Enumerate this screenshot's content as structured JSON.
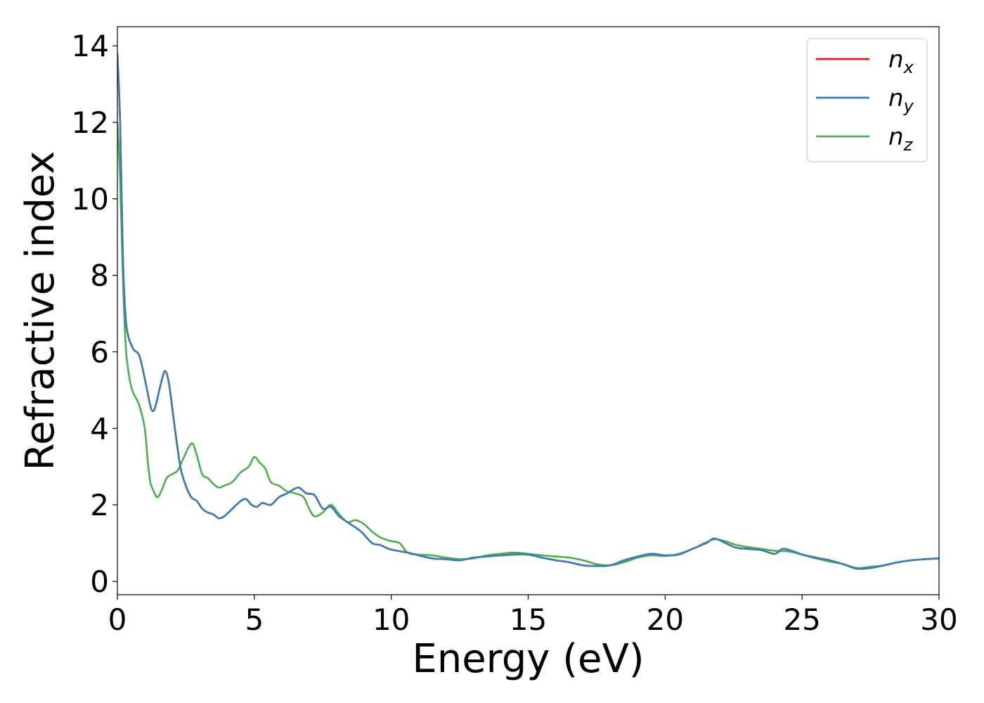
{
  "chart_data": {
    "type": "line",
    "title": "",
    "xlabel": "Energy (eV)",
    "ylabel": "Refractive index",
    "xlim": [
      0,
      30
    ],
    "ylim": [
      -0.35,
      14.5
    ],
    "xticks": [
      0,
      5,
      10,
      15,
      20,
      25,
      30
    ],
    "xtick_labels": [
      "0",
      "5",
      "10",
      "15",
      "20",
      "25",
      "30"
    ],
    "yticks": [
      0,
      2,
      4,
      6,
      8,
      10,
      12,
      14
    ],
    "ytick_labels": [
      "0",
      "2",
      "4",
      "6",
      "8",
      "10",
      "12",
      "14"
    ],
    "grid": false,
    "legend_position": "top-right",
    "series": [
      {
        "name": "n_x",
        "legend_base": "n",
        "legend_sub": "x",
        "color": "#e41a1c",
        "x": [
          0,
          0.1,
          0.2,
          0.3,
          0.4,
          0.5,
          0.6,
          0.8,
          1.0,
          1.2,
          1.3,
          1.4,
          1.6,
          1.75,
          1.9,
          2.1,
          2.3,
          2.5,
          2.7,
          2.9,
          3.1,
          3.3,
          3.5,
          3.7,
          3.9,
          4.2,
          4.5,
          4.7,
          4.9,
          5.1,
          5.3,
          5.6,
          5.9,
          6.2,
          6.6,
          6.9,
          7.2,
          7.5,
          7.8,
          8.1,
          8.5,
          8.9,
          9.3,
          9.6,
          9.9,
          10.2,
          10.6,
          11.0,
          11.5,
          12.0,
          12.5,
          13.0,
          13.5,
          14.0,
          14.5,
          15.0,
          15.5,
          16.0,
          16.5,
          17.0,
          17.5,
          18.0,
          18.5,
          19.0,
          19.5,
          20.0,
          20.5,
          21.0,
          21.5,
          21.8,
          22.2,
          22.6,
          23.0,
          23.5,
          24.0,
          24.3,
          24.7,
          25.0,
          25.5,
          26.0,
          26.5,
          27.0,
          27.5,
          28.0,
          28.5,
          29.0,
          29.5,
          30.0
        ],
        "y": [
          13.8,
          12.0,
          8.5,
          6.9,
          6.4,
          6.2,
          6.05,
          5.9,
          5.3,
          4.6,
          4.45,
          4.6,
          5.2,
          5.5,
          5.1,
          4.0,
          3.0,
          2.5,
          2.2,
          2.1,
          1.9,
          1.8,
          1.75,
          1.65,
          1.7,
          1.9,
          2.1,
          2.15,
          2.0,
          1.95,
          2.05,
          2.0,
          2.2,
          2.3,
          2.45,
          2.3,
          2.25,
          1.9,
          1.95,
          1.7,
          1.5,
          1.3,
          1.0,
          0.95,
          0.85,
          0.8,
          0.75,
          0.68,
          0.6,
          0.58,
          0.55,
          0.62,
          0.65,
          0.68,
          0.7,
          0.7,
          0.62,
          0.55,
          0.5,
          0.42,
          0.4,
          0.42,
          0.55,
          0.65,
          0.72,
          0.68,
          0.7,
          0.85,
          1.0,
          1.12,
          1.0,
          0.88,
          0.85,
          0.82,
          0.72,
          0.85,
          0.78,
          0.7,
          0.62,
          0.55,
          0.45,
          0.33,
          0.35,
          0.42,
          0.5,
          0.55,
          0.58,
          0.6
        ]
      },
      {
        "name": "n_y",
        "legend_base": "n",
        "legend_sub": "y",
        "color": "#377eb8",
        "x": [
          0,
          0.1,
          0.2,
          0.3,
          0.4,
          0.5,
          0.6,
          0.8,
          1.0,
          1.2,
          1.3,
          1.4,
          1.6,
          1.75,
          1.9,
          2.1,
          2.3,
          2.5,
          2.7,
          2.9,
          3.1,
          3.3,
          3.5,
          3.7,
          3.9,
          4.2,
          4.5,
          4.7,
          4.9,
          5.1,
          5.3,
          5.6,
          5.9,
          6.2,
          6.6,
          6.9,
          7.2,
          7.5,
          7.8,
          8.1,
          8.5,
          8.9,
          9.3,
          9.6,
          9.9,
          10.2,
          10.6,
          11.0,
          11.5,
          12.0,
          12.5,
          13.0,
          13.5,
          14.0,
          14.5,
          15.0,
          15.5,
          16.0,
          16.5,
          17.0,
          17.5,
          18.0,
          18.5,
          19.0,
          19.5,
          20.0,
          20.5,
          21.0,
          21.5,
          21.8,
          22.2,
          22.6,
          23.0,
          23.5,
          24.0,
          24.3,
          24.7,
          25.0,
          25.5,
          26.0,
          26.5,
          27.0,
          27.5,
          28.0,
          28.5,
          29.0,
          29.5,
          30.0
        ],
        "y": [
          13.8,
          12.0,
          8.5,
          6.9,
          6.4,
          6.2,
          6.05,
          5.9,
          5.3,
          4.6,
          4.45,
          4.6,
          5.2,
          5.5,
          5.1,
          4.0,
          3.0,
          2.5,
          2.2,
          2.1,
          1.9,
          1.8,
          1.75,
          1.65,
          1.7,
          1.9,
          2.1,
          2.15,
          2.0,
          1.95,
          2.05,
          2.0,
          2.2,
          2.3,
          2.45,
          2.3,
          2.25,
          1.9,
          1.95,
          1.7,
          1.5,
          1.3,
          1.0,
          0.95,
          0.85,
          0.8,
          0.75,
          0.68,
          0.6,
          0.58,
          0.55,
          0.62,
          0.65,
          0.68,
          0.7,
          0.7,
          0.62,
          0.55,
          0.5,
          0.42,
          0.4,
          0.42,
          0.55,
          0.65,
          0.72,
          0.68,
          0.7,
          0.85,
          1.0,
          1.12,
          1.0,
          0.88,
          0.85,
          0.82,
          0.72,
          0.85,
          0.78,
          0.7,
          0.62,
          0.55,
          0.45,
          0.33,
          0.35,
          0.42,
          0.5,
          0.55,
          0.58,
          0.6
        ]
      },
      {
        "name": "n_z",
        "legend_base": "n",
        "legend_sub": "z",
        "color": "#4daf4a",
        "x": [
          0,
          0.1,
          0.2,
          0.3,
          0.4,
          0.5,
          0.6,
          0.8,
          1.0,
          1.1,
          1.2,
          1.3,
          1.45,
          1.6,
          1.8,
          2.0,
          2.2,
          2.4,
          2.6,
          2.75,
          2.9,
          3.1,
          3.3,
          3.5,
          3.7,
          3.9,
          4.2,
          4.5,
          4.8,
          5.0,
          5.2,
          5.4,
          5.6,
          5.9,
          6.2,
          6.5,
          6.8,
          7.0,
          7.2,
          7.5,
          7.8,
          8.1,
          8.4,
          8.7,
          9.0,
          9.3,
          9.6,
          10.0,
          10.3,
          10.6,
          11.0,
          11.5,
          12.0,
          12.5,
          13.0,
          13.5,
          14.0,
          14.5,
          15.0,
          15.5,
          16.0,
          16.5,
          17.0,
          17.5,
          18.0,
          18.5,
          19.0,
          19.5,
          20.0,
          20.5,
          21.0,
          21.5,
          21.8,
          22.2,
          22.6,
          23.0,
          23.5,
          24.0,
          24.5,
          25.0,
          25.5,
          26.0,
          26.5,
          27.0,
          27.5,
          28.0,
          28.5,
          29.0,
          29.5,
          30.0
        ],
        "y": [
          12.0,
          10.5,
          8.0,
          6.2,
          5.5,
          5.1,
          4.9,
          4.6,
          4.0,
          3.2,
          2.6,
          2.4,
          2.2,
          2.35,
          2.7,
          2.8,
          2.9,
          3.2,
          3.5,
          3.6,
          3.3,
          2.8,
          2.7,
          2.55,
          2.45,
          2.5,
          2.6,
          2.85,
          3.0,
          3.25,
          3.1,
          2.95,
          2.6,
          2.5,
          2.35,
          2.3,
          2.2,
          1.9,
          1.7,
          1.8,
          2.0,
          1.75,
          1.55,
          1.6,
          1.5,
          1.3,
          1.15,
          1.05,
          1.0,
          0.75,
          0.7,
          0.68,
          0.62,
          0.58,
          0.6,
          0.68,
          0.72,
          0.75,
          0.72,
          0.68,
          0.65,
          0.62,
          0.55,
          0.45,
          0.42,
          0.5,
          0.62,
          0.68,
          0.66,
          0.72,
          0.85,
          1.02,
          1.1,
          1.05,
          0.95,
          0.9,
          0.85,
          0.8,
          0.78,
          0.7,
          0.6,
          0.52,
          0.45,
          0.35,
          0.38,
          0.42,
          0.5,
          0.55,
          0.58,
          0.6
        ]
      }
    ]
  }
}
